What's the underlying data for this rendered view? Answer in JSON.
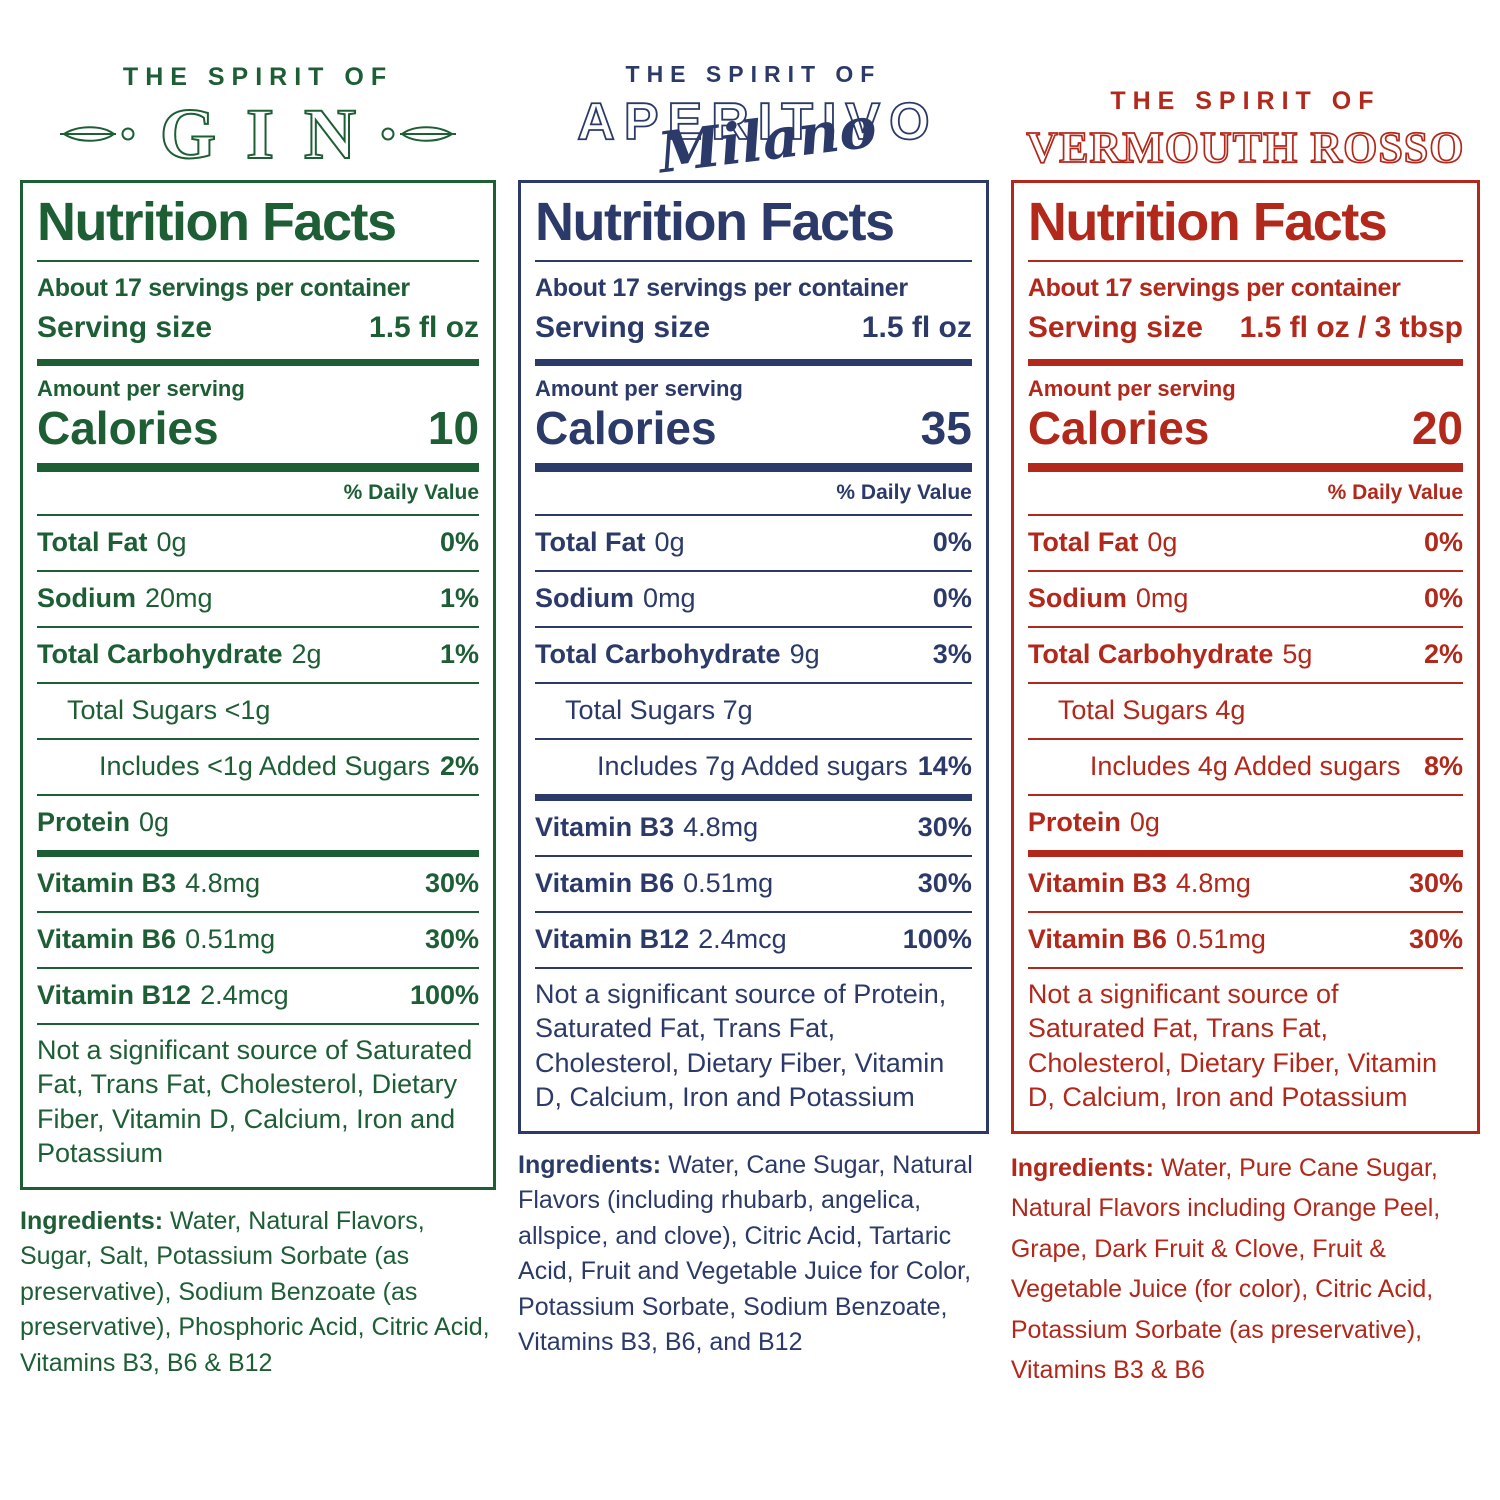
{
  "colors": {
    "gin_green": "#1d5e35",
    "aperitivo_navy": "#2b3a68",
    "vermouth_red": "#b2281b"
  },
  "panels": [
    {
      "id": "gin",
      "color": "#1d5e35",
      "logo": {
        "eyebrow": "THE SPIRIT OF",
        "name": "GIN"
      },
      "facts": {
        "title": "Nutrition Facts",
        "servings": "About 17 servings per container",
        "serving_size_label": "Serving size",
        "serving_size_value": "1.5 fl oz",
        "amount_label": "Amount per serving",
        "calories_label": "Calories",
        "calories_value": "10",
        "daily_value_label": "% Daily Value",
        "rows": [
          {
            "label": "Total Fat",
            "value": "0g",
            "pct": "0%",
            "indent": 0,
            "sep": "thin"
          },
          {
            "label": "Sodium",
            "value": "20mg",
            "pct": "1%",
            "indent": 0,
            "sep": "thin"
          },
          {
            "label": "Total Carbohydrate",
            "value": "2g",
            "pct": "1%",
            "indent": 0,
            "sep": "thin"
          },
          {
            "label": "",
            "value": "Total Sugars <1g",
            "pct": "",
            "indent": 1,
            "sep": "thin"
          },
          {
            "label": "",
            "value": "Includes <1g Added Sugars",
            "pct": "2%",
            "indent": 2,
            "sep": "thin"
          },
          {
            "label": "Protein",
            "value": "0g",
            "pct": "",
            "indent": 0,
            "sep": "thin"
          },
          {
            "label": "Vitamin B3",
            "value": "4.8mg",
            "pct": "30%",
            "indent": 0,
            "sep": "thick"
          },
          {
            "label": "Vitamin B6",
            "value": "0.51mg",
            "pct": "30%",
            "indent": 0,
            "sep": "thin"
          },
          {
            "label": "Vitamin B12",
            "value": "2.4mcg",
            "pct": "100%",
            "indent": 0,
            "sep": "thin"
          }
        ],
        "footnote": "Not a significant source of Saturated Fat, Trans Fat, Cholesterol, Dietary Fiber, Vitamin D, Calcium, Iron and Potassium"
      },
      "ingredients_label": "Ingredients:",
      "ingredients": " Water, Natural Flavors, Sugar, Salt, Potassium Sorbate (as preservative), Sodium Benzoate (as preservative), Phosphoric Acid, Citric Acid, Vitamins B3, B6 & B12"
    },
    {
      "id": "aperitivo-milano",
      "color": "#2b3a68",
      "logo": {
        "eyebrow": "THE SPIRIT OF",
        "name": "APERITIVO",
        "script": "Milano"
      },
      "facts": {
        "title": "Nutrition Facts",
        "servings": "About 17 servings per container",
        "serving_size_label": "Serving size",
        "serving_size_value": "1.5 fl oz",
        "amount_label": "Amount per serving",
        "calories_label": "Calories",
        "calories_value": "35",
        "daily_value_label": "% Daily Value",
        "rows": [
          {
            "label": "Total Fat",
            "value": "0g",
            "pct": "0%",
            "indent": 0,
            "sep": "thin"
          },
          {
            "label": "Sodium",
            "value": "0mg",
            "pct": "0%",
            "indent": 0,
            "sep": "thin"
          },
          {
            "label": "Total Carbohydrate",
            "value": "9g",
            "pct": "3%",
            "indent": 0,
            "sep": "thin"
          },
          {
            "label": "",
            "value": "Total Sugars 7g",
            "pct": "",
            "indent": 1,
            "sep": "thin"
          },
          {
            "label": "",
            "value": "Includes 7g Added sugars",
            "pct": "14%",
            "indent": 2,
            "sep": "thin"
          },
          {
            "label": "Vitamin B3",
            "value": "4.8mg",
            "pct": "30%",
            "indent": 0,
            "sep": "thick"
          },
          {
            "label": "Vitamin B6",
            "value": "0.51mg",
            "pct": "30%",
            "indent": 0,
            "sep": "thin"
          },
          {
            "label": "Vitamin B12",
            "value": "2.4mcg",
            "pct": "100%",
            "indent": 0,
            "sep": "thin"
          }
        ],
        "footnote": "Not a significant source of Protein, Saturated Fat, Trans Fat, Cholesterol, Dietary Fiber, Vitamin D, Calcium, Iron and Potassium"
      },
      "ingredients_label": "Ingredients:",
      "ingredients": " Water, Cane Sugar, Natural Flavors (including rhubarb, angelica, allspice, and clove), Citric Acid, Tartaric Acid, Fruit and Vegetable Juice for Color,  Potassium Sorbate, Sodium Benzoate, Vitamins B3, B6, and B12"
    },
    {
      "id": "vermouth-rosso",
      "color": "#b2281b",
      "logo": {
        "eyebrow": "THE SPIRIT OF",
        "name": "VERMOUTH ROSSO"
      },
      "facts": {
        "title": "Nutrition Facts",
        "servings": "About 17 servings per container",
        "serving_size_label": "Serving size",
        "serving_size_value": "1.5 fl oz / 3 tbsp",
        "amount_label": "Amount per serving",
        "calories_label": "Calories",
        "calories_value": "20",
        "daily_value_label": "% Daily Value",
        "rows": [
          {
            "label": "Total Fat",
            "value": "0g",
            "pct": "0%",
            "indent": 0,
            "sep": "thin"
          },
          {
            "label": "Sodium",
            "value": "0mg",
            "pct": "0%",
            "indent": 0,
            "sep": "thin"
          },
          {
            "label": "Total Carbohydrate",
            "value": "5g",
            "pct": "2%",
            "indent": 0,
            "sep": "thin"
          },
          {
            "label": "",
            "value": "Total Sugars 4g",
            "pct": "",
            "indent": 1,
            "sep": "thin"
          },
          {
            "label": "",
            "value": "Includes 4g Added sugars",
            "pct": "8%",
            "indent": 2,
            "sep": "thin"
          },
          {
            "label": "Protein",
            "value": "0g",
            "pct": "",
            "indent": 0,
            "sep": "thin"
          },
          {
            "label": "Vitamin B3",
            "value": "4.8mg",
            "pct": "30%",
            "indent": 0,
            "sep": "thick"
          },
          {
            "label": "Vitamin B6",
            "value": "0.51mg",
            "pct": "30%",
            "indent": 0,
            "sep": "thin"
          }
        ],
        "footnote": "Not a significant source of Saturated Fat, Trans Fat, Cholesterol, Dietary Fiber, Vitamin D, Calcium, Iron and Potassium"
      },
      "ingredients_label": "Ingredients:",
      "ingredients": " Water, Pure Cane Sugar, Natural Flavors including Orange Peel, Grape, Dark Fruit & Clove, Fruit & Vegetable Juice (for color), Citric Acid, Potassium Sorbate (as preservative), Vitamins B3 & B6"
    }
  ]
}
